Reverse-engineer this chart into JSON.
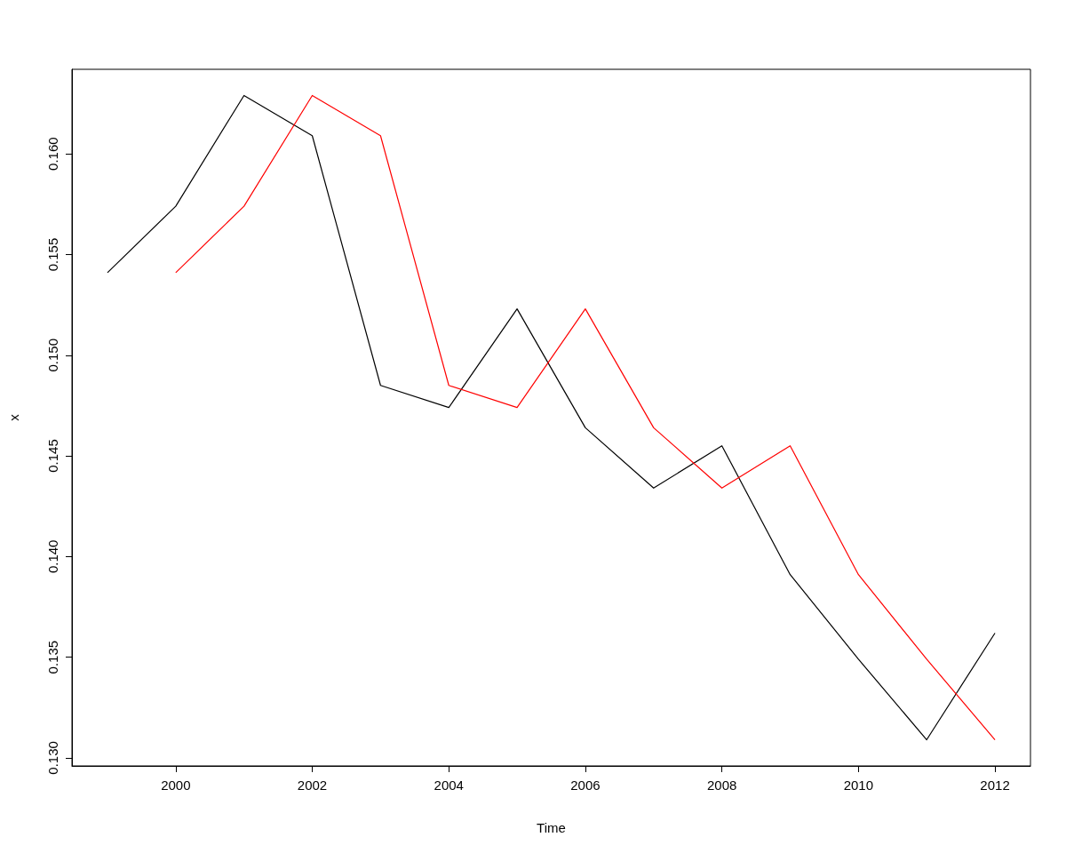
{
  "chart_data": {
    "type": "line",
    "xlabel": "Time",
    "ylabel": "x",
    "series": [
      {
        "color": "#000000",
        "x": [
          1999,
          2000,
          2001,
          2002,
          2003,
          2004,
          2005,
          2006,
          2007,
          2008,
          2009,
          2010,
          2011,
          2012
        ],
        "values": [
          0.1541,
          0.1574,
          0.1629,
          0.1609,
          0.1485,
          0.1474,
          0.1523,
          0.1464,
          0.1434,
          0.1455,
          0.1391,
          0.1349,
          0.1309,
          0.1362
        ]
      },
      {
        "color": "#ff0000",
        "x": [
          2000,
          2001,
          2002,
          2003,
          2004,
          2005,
          2006,
          2007,
          2008,
          2009,
          2010,
          2011,
          2012
        ],
        "values": [
          0.1541,
          0.1574,
          0.1629,
          0.1609,
          0.1485,
          0.1474,
          0.1523,
          0.1464,
          0.1434,
          0.1455,
          0.1391,
          0.1349,
          0.1309
        ]
      }
    ],
    "xlim": [
      1998.48,
      2012.52
    ],
    "xticks": [
      2000,
      2002,
      2004,
      2006,
      2008,
      2010,
      2012
    ],
    "ylim": [
      0.1296,
      0.1642
    ],
    "yticks": [
      {
        "value": 0.13,
        "label": "0.130"
      },
      {
        "value": 0.135,
        "label": "0.135"
      },
      {
        "value": 0.14,
        "label": "0.140"
      },
      {
        "value": 0.145,
        "label": "0.145"
      },
      {
        "value": 0.15,
        "label": "0.150"
      },
      {
        "value": 0.155,
        "label": "0.155"
      },
      {
        "value": 0.16,
        "label": "0.160"
      }
    ],
    "grid": false,
    "marker": "none",
    "line_style": "solid"
  }
}
